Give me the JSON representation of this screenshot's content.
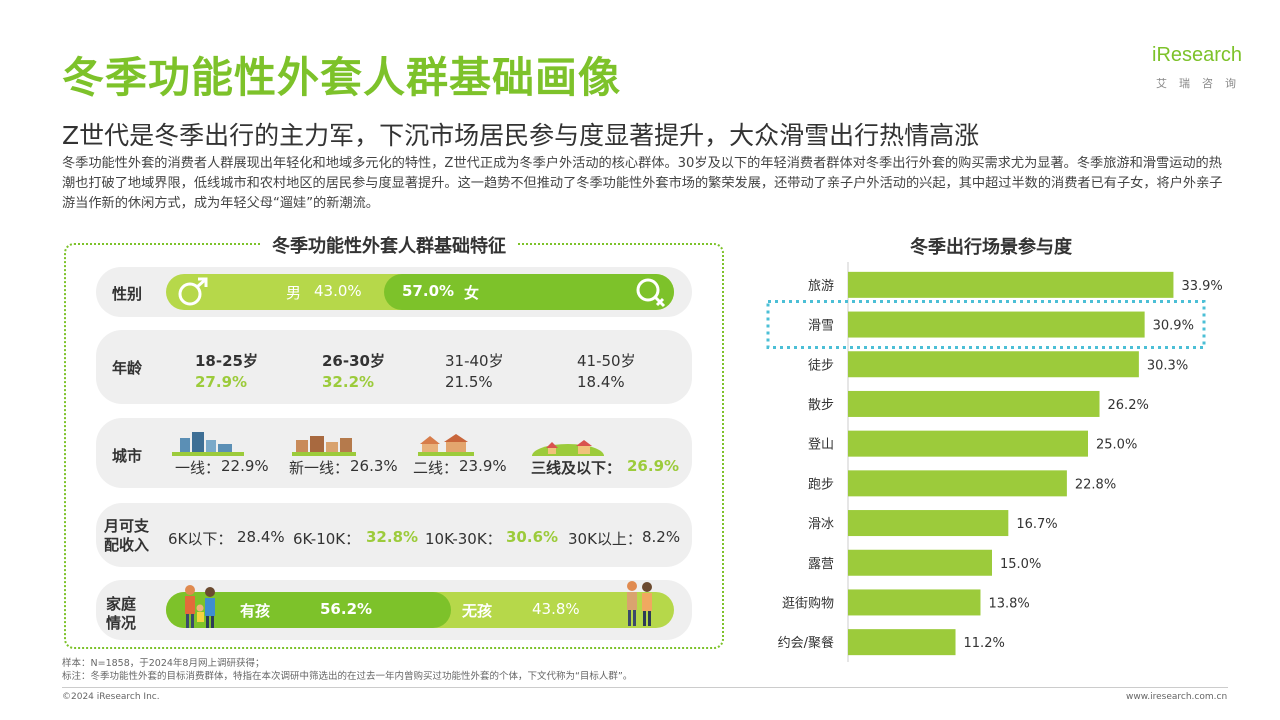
{
  "title": "冬季功能性外套人群基础画像",
  "logo": {
    "brand": "iResearch",
    "sub": "艾瑞咨询"
  },
  "subtitle": "Z世代是冬季出行的主力军，下沉市场居民参与度显著提升，大众滑雪出行热情高涨",
  "description": "冬季功能性外套的消费者人群展现出年轻化和地域多元化的特性，Z世代正成为冬季户外活动的核心群体。30岁及以下的年轻消费者群体对冬季出行外套的购买需求尤为显著。冬季旅游和滑雪运动的热潮也打破了地域界限，低线城市和农村地区的居民参与度显著提升。这一趋势不但推动了冬季功能性外套市场的繁荣发展，还带动了亲子户外活动的兴起，其中超过半数的消费者已有子女，将户外亲子游当作新的休闲方式，成为年轻父母“遛娃”的新潮流。",
  "left_panel": {
    "title": "冬季功能性外套人群基础特征",
    "gender": {
      "label": "性别",
      "male_label": "男",
      "male_value": "43.0%",
      "female_value": "57.0%",
      "female_label": "女",
      "male_share": 0.43
    },
    "age": {
      "label": "年龄",
      "groups": [
        {
          "range": "18-25岁",
          "value": "27.9%"
        },
        {
          "range": "26-30岁",
          "value": "32.2%"
        },
        {
          "range": "31-40岁",
          "value": "21.5%"
        },
        {
          "range": "41-50岁",
          "value": "18.4%"
        }
      ]
    },
    "city": {
      "label": "城市",
      "tiers": [
        {
          "name": "一线：",
          "value": "22.9%"
        },
        {
          "name": "新一线：",
          "value": "26.3%"
        },
        {
          "name": "二线：",
          "value": "23.9%"
        },
        {
          "name": "三线及以下：",
          "value": "26.9%"
        }
      ]
    },
    "income": {
      "label_line1": "月可支",
      "label_line2": "配收入",
      "bands": [
        {
          "name": "6K以下：",
          "value": "28.4%"
        },
        {
          "name": "6K-10K：",
          "value": "32.8%"
        },
        {
          "name": "10K-30K：",
          "value": "30.6%"
        },
        {
          "name": "30K以上：",
          "value": "8.2%"
        }
      ]
    },
    "family": {
      "label_line1": "家庭",
      "label_line2": "情况",
      "has_kids_label": "有孩",
      "has_kids_value": "56.2%",
      "no_kids_label": "无孩",
      "no_kids_value": "43.8%",
      "has_kids_share": 0.562
    }
  },
  "chart_data": {
    "type": "bar",
    "orientation": "horizontal",
    "title": "冬季出行场景参与度",
    "categories": [
      "旅游",
      "滑雪",
      "徒步",
      "散步",
      "登山",
      "跑步",
      "滑冰",
      "露营",
      "逛街购物",
      "约会/聚餐"
    ],
    "values": [
      33.9,
      30.9,
      30.3,
      26.2,
      25.0,
      22.8,
      16.7,
      15.0,
      13.8,
      11.2
    ],
    "value_labels": [
      "33.9%",
      "30.9%",
      "30.3%",
      "26.2%",
      "25.0%",
      "22.8%",
      "16.7%",
      "15.0%",
      "13.8%",
      "11.2%"
    ],
    "highlighted_category": "滑雪",
    "bar_color": "#9ccb3b",
    "highlight_color": "#4bbfd6"
  },
  "footnote": {
    "line1": "样本：N=1858，于2024年8月网上调研获得；",
    "line2": "标注：冬季功能性外套的目标消费群体，特指在本次调研中筛选出的在过去一年内曾购买过功能性外套的个体，下文代称为“目标人群”。"
  },
  "copyright": "©2024 iResearch Inc.",
  "website": "www.iresearch.com.cn",
  "colors": {
    "accent": "#7dc22a",
    "bar": "#9ccb3b",
    "highlight": "#4bbfd6"
  }
}
